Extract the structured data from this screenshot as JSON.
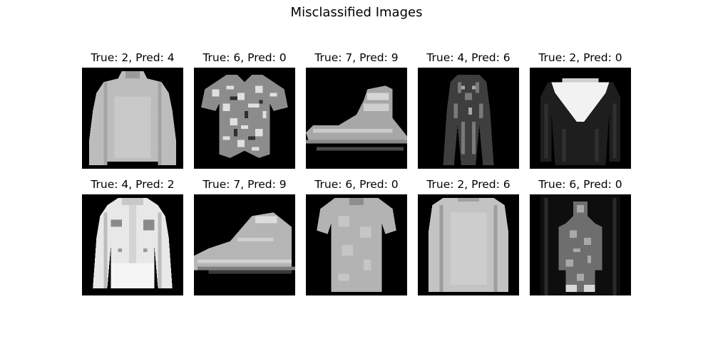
{
  "figure": {
    "title": "Misclassified Images"
  },
  "panels": [
    {
      "caption": "True: 2, Pred: 4",
      "true_label": 2,
      "pred_label": 4,
      "icon": "hoodie-image"
    },
    {
      "caption": "True: 6, Pred: 0",
      "true_label": 6,
      "pred_label": 0,
      "icon": "patterned-tshirt-image"
    },
    {
      "caption": "True: 7, Pred: 9",
      "true_label": 7,
      "pred_label": 9,
      "icon": "sneaker-image"
    },
    {
      "caption": "True: 4, Pred: 6",
      "true_label": 4,
      "pred_label": 6,
      "icon": "dark-coat-image"
    },
    {
      "caption": "True: 2, Pred: 0",
      "true_label": 2,
      "pred_label": 0,
      "icon": "v-neck-pullover-image"
    },
    {
      "caption": "True: 4, Pred: 2",
      "true_label": 4,
      "pred_label": 2,
      "icon": "white-jacket-image"
    },
    {
      "caption": "True: 7, Pred: 9",
      "true_label": 7,
      "pred_label": 9,
      "icon": "ankle-boot-image"
    },
    {
      "caption": "True: 6, Pred: 0",
      "true_label": 6,
      "pred_label": 0,
      "icon": "tshirt-image"
    },
    {
      "caption": "True: 2, Pred: 6",
      "true_label": 2,
      "pred_label": 6,
      "icon": "longsleeve-shirt-image"
    },
    {
      "caption": "True: 6, Pred: 0",
      "true_label": 6,
      "pred_label": 0,
      "icon": "dark-shirt-image"
    }
  ]
}
